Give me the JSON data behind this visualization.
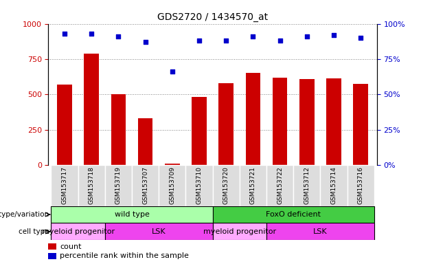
{
  "title": "GDS2720 / 1434570_at",
  "samples": [
    "GSM153717",
    "GSM153718",
    "GSM153719",
    "GSM153707",
    "GSM153709",
    "GSM153710",
    "GSM153720",
    "GSM153721",
    "GSM153722",
    "GSM153712",
    "GSM153714",
    "GSM153716"
  ],
  "counts": [
    570,
    790,
    500,
    330,
    10,
    480,
    580,
    650,
    620,
    610,
    615,
    575
  ],
  "percentile_ranks": [
    93,
    93,
    91,
    87,
    66,
    88,
    88,
    91,
    88,
    91,
    92,
    90
  ],
  "ylim_left": [
    0,
    1000
  ],
  "ylim_right": [
    0,
    100
  ],
  "yticks_left": [
    0,
    250,
    500,
    750,
    1000
  ],
  "yticks_right": [
    0,
    25,
    50,
    75,
    100
  ],
  "bar_color": "#cc0000",
  "dot_color": "#0000cc",
  "genotype_groups": [
    {
      "label": "wild type",
      "start": 0,
      "end": 5,
      "color": "#aaffaa"
    },
    {
      "label": "FoxO deficient",
      "start": 6,
      "end": 11,
      "color": "#44cc44"
    }
  ],
  "cell_type_groups": [
    {
      "label": "myeloid progenitor",
      "start": 0,
      "end": 1,
      "color": "#ffaaff"
    },
    {
      "label": "LSK",
      "start": 2,
      "end": 5,
      "color": "#ee44ee"
    },
    {
      "label": "myeloid progenitor",
      "start": 6,
      "end": 7,
      "color": "#ffaaff"
    },
    {
      "label": "LSK",
      "start": 8,
      "end": 11,
      "color": "#ee44ee"
    }
  ],
  "genotype_label": "genotype/variation",
  "celltype_label": "cell type",
  "legend_count_label": "count",
  "legend_pct_label": "percentile rank within the sample",
  "left_ycolor": "#cc0000",
  "right_ycolor": "#0000cc",
  "bar_width": 0.55,
  "sample_box_color": "#dddddd",
  "right_ytick_labels": [
    "0%",
    "25%",
    "50%",
    "75%",
    "100%"
  ]
}
